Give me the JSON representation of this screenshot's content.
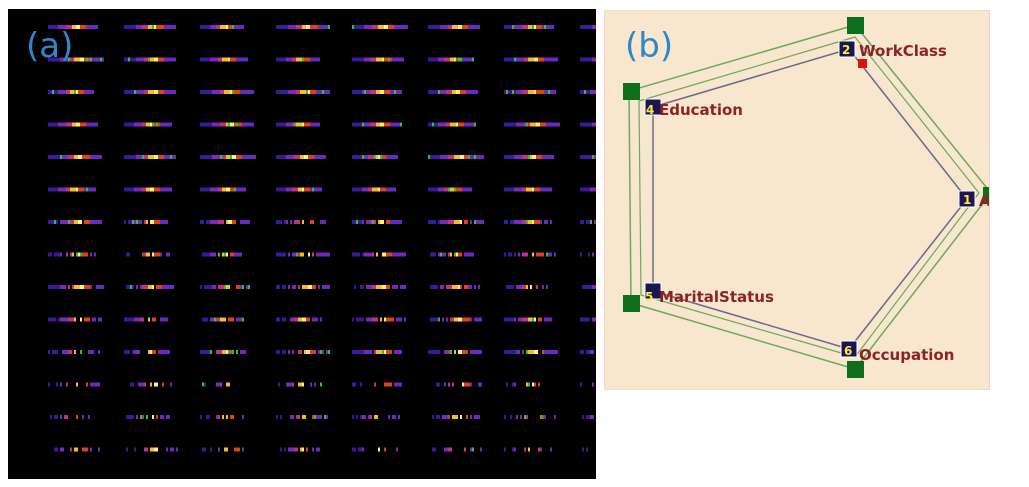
{
  "panel_a": {
    "label": "(a)",
    "rows": 14,
    "columns": 8,
    "glyph_colors": [
      "#3a1a9a",
      "#7a2ab8",
      "#c0308a",
      "#e04020",
      "#f0c020",
      "#fff080",
      "#30c040",
      "#6a2ac0"
    ]
  },
  "panel_b": {
    "label": "(b)",
    "nodes": [
      {
        "number": "2",
        "label": "WorkClass"
      },
      {
        "number": "1",
        "label": "A"
      },
      {
        "number": "6",
        "label": "Occupation"
      },
      {
        "number": "5",
        "label": "MaritalStatus"
      },
      {
        "number": "4",
        "label": "Education"
      }
    ],
    "colors": {
      "background": "#f8e6cf",
      "node_fill": "#1a1650",
      "anchor_fill": "#0e6e1a",
      "inner_edge": "#6a6a8a",
      "outer_edge": "#6aaa5a",
      "label_text": "#8e2222",
      "marker": "#e01010"
    }
  }
}
